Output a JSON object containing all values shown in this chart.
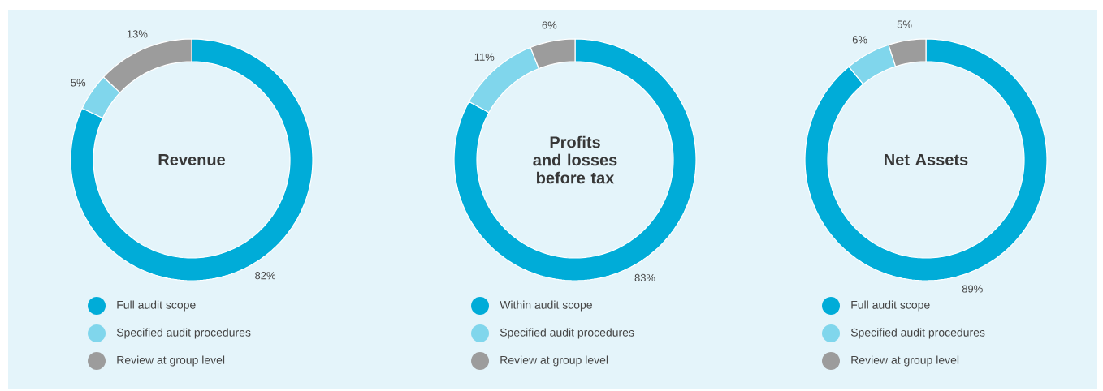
{
  "chart_data": [
    {
      "type": "donut",
      "title": "Revenue",
      "categories": [
        "Full audit scope",
        "Specified audit procedures",
        "Review at group level"
      ],
      "values": [
        82,
        5,
        13
      ],
      "value_labels": [
        "82%",
        "5%",
        "13%"
      ],
      "colors": [
        "#00acd8",
        "#80d6ec",
        "#9c9c9c"
      ],
      "legend": "bottom"
    },
    {
      "type": "donut",
      "title": "Profits and losses before tax",
      "categories": [
        "Within audit scope",
        "Specified audit procedures",
        "Review at group level"
      ],
      "values": [
        83,
        11,
        6
      ],
      "value_labels": [
        "83%",
        "11%",
        "6%"
      ],
      "colors": [
        "#00acd8",
        "#80d6ec",
        "#9c9c9c"
      ],
      "legend": "bottom"
    },
    {
      "type": "donut",
      "title": "Net Assets",
      "categories": [
        "Full audit scope",
        "Specified audit procedures",
        "Review at group level"
      ],
      "values": [
        89,
        6,
        5
      ],
      "value_labels": [
        "89%",
        "6%",
        "5%"
      ],
      "colors": [
        "#00acd8",
        "#80d6ec",
        "#9c9c9c"
      ],
      "legend": "bottom"
    }
  ]
}
